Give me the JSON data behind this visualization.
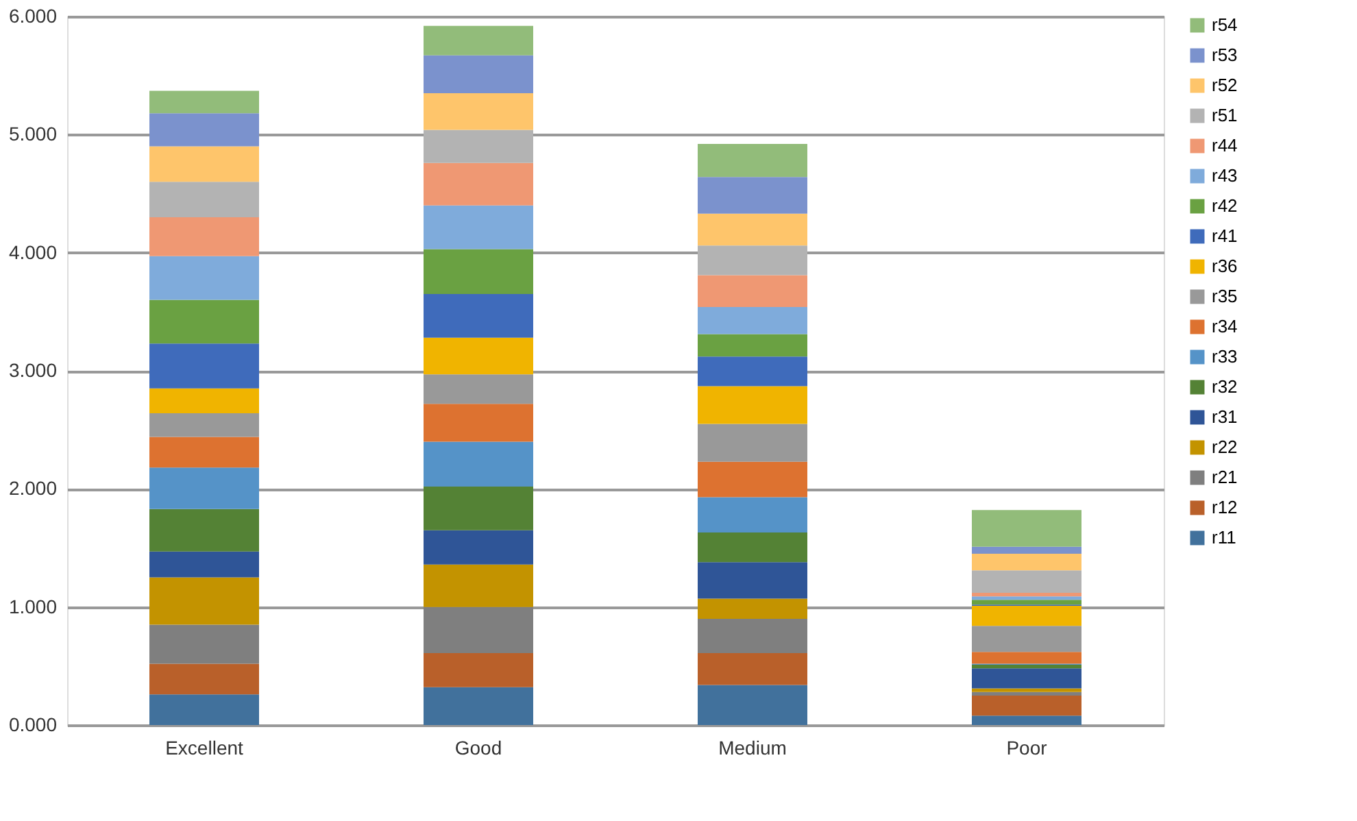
{
  "chart_data": {
    "type": "bar",
    "stacked": true,
    "categories": [
      "Excellent",
      "Good",
      "Medium",
      "Poor"
    ],
    "ylim": [
      0,
      6
    ],
    "yticks": [
      {
        "value": 0,
        "label": "0.000"
      },
      {
        "value": 1,
        "label": "1.000"
      },
      {
        "value": 2,
        "label": "2.000"
      },
      {
        "value": 3,
        "label": "3.000"
      },
      {
        "value": 4,
        "label": "4.000"
      },
      {
        "value": 5,
        "label": "5.000"
      },
      {
        "value": 6,
        "label": "6.000"
      }
    ],
    "grid": "y",
    "legend": "right",
    "series": [
      {
        "name": "r11",
        "color": "#41719c",
        "values": [
          0.26,
          0.32,
          0.34,
          0.08
        ]
      },
      {
        "name": "r12",
        "color": "#b9602a",
        "values": [
          0.26,
          0.29,
          0.27,
          0.17
        ]
      },
      {
        "name": "r21",
        "color": "#7f7f7f",
        "values": [
          0.33,
          0.39,
          0.29,
          0.03
        ]
      },
      {
        "name": "r22",
        "color": "#c39300",
        "values": [
          0.4,
          0.36,
          0.17,
          0.03
        ]
      },
      {
        "name": "r31",
        "color": "#2f5597",
        "values": [
          0.22,
          0.29,
          0.31,
          0.17
        ]
      },
      {
        "name": "r32",
        "color": "#548235",
        "values": [
          0.36,
          0.37,
          0.25,
          0.03
        ]
      },
      {
        "name": "r33",
        "color": "#5593c8",
        "values": [
          0.35,
          0.38,
          0.3,
          0.01
        ]
      },
      {
        "name": "r34",
        "color": "#dd7230",
        "values": [
          0.26,
          0.32,
          0.3,
          0.1
        ]
      },
      {
        "name": "r35",
        "color": "#999999",
        "values": [
          0.2,
          0.25,
          0.32,
          0.22
        ]
      },
      {
        "name": "r36",
        "color": "#f0b400",
        "values": [
          0.21,
          0.31,
          0.32,
          0.17
        ]
      },
      {
        "name": "r41",
        "color": "#3f6bbb",
        "values": [
          0.38,
          0.37,
          0.25,
          0.01
        ]
      },
      {
        "name": "r42",
        "color": "#6aa142",
        "values": [
          0.37,
          0.38,
          0.19,
          0.04
        ]
      },
      {
        "name": "r43",
        "color": "#7fabdb",
        "values": [
          0.37,
          0.37,
          0.23,
          0.03
        ]
      },
      {
        "name": "r44",
        "color": "#ef9873",
        "values": [
          0.33,
          0.36,
          0.27,
          0.03
        ]
      },
      {
        "name": "r51",
        "color": "#b3b3b3",
        "values": [
          0.3,
          0.28,
          0.25,
          0.19
        ]
      },
      {
        "name": "r52",
        "color": "#fec56b",
        "values": [
          0.3,
          0.31,
          0.27,
          0.14
        ]
      },
      {
        "name": "r53",
        "color": "#7b92cd",
        "values": [
          0.28,
          0.32,
          0.31,
          0.06
        ]
      },
      {
        "name": "r54",
        "color": "#92bc7a",
        "values": [
          0.19,
          0.25,
          0.28,
          0.31
        ]
      }
    ]
  }
}
